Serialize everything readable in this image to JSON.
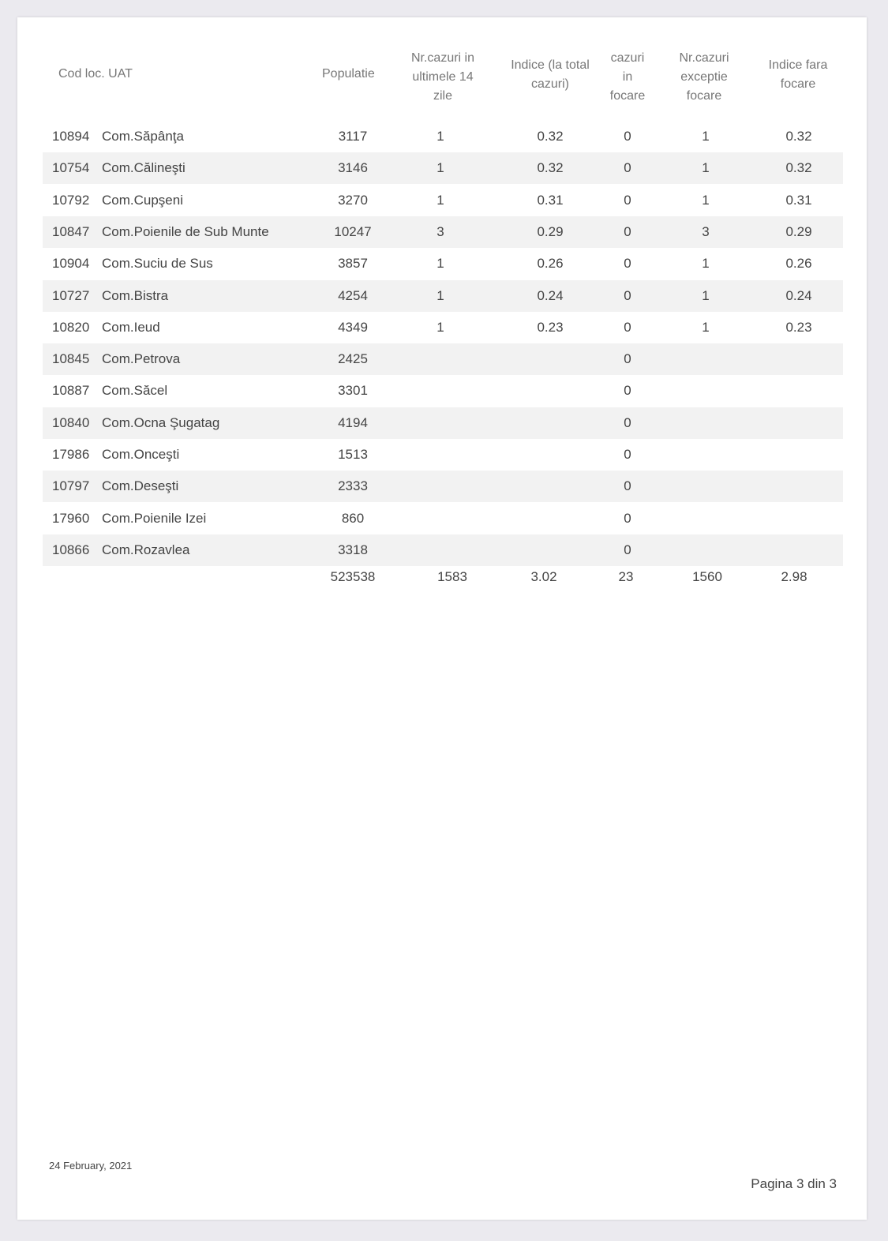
{
  "headers": {
    "cod_uat": "Cod loc.  UAT",
    "populatie": "Populatie",
    "nr_cazuri": [
      "Nr.cazuri in",
      "ultimele 14",
      "zile"
    ],
    "indice": [
      "Indice (la total",
      "cazuri)"
    ],
    "cazuri_focare": [
      "cazuri",
      "in",
      "focare"
    ],
    "nr_exceptie": [
      "Nr.cazuri",
      "exceptie",
      "focare"
    ],
    "indice_fara": [
      "Indice fara",
      "focare"
    ]
  },
  "rows": [
    {
      "cod": "10894",
      "uat": "Com.Săpânţa",
      "pop": "3117",
      "nr": "1",
      "ind": "0.32",
      "foc": "0",
      "exc": "1",
      "indf": "0.32"
    },
    {
      "cod": "10754",
      "uat": "Com.Călineşti",
      "pop": "3146",
      "nr": "1",
      "ind": "0.32",
      "foc": "0",
      "exc": "1",
      "indf": "0.32"
    },
    {
      "cod": "10792",
      "uat": "Com.Cupşeni",
      "pop": "3270",
      "nr": "1",
      "ind": "0.31",
      "foc": "0",
      "exc": "1",
      "indf": "0.31"
    },
    {
      "cod": "10847",
      "uat": "Com.Poienile de Sub Munte",
      "pop": "10247",
      "nr": "3",
      "ind": "0.29",
      "foc": "0",
      "exc": "3",
      "indf": "0.29"
    },
    {
      "cod": "10904",
      "uat": "Com.Suciu de Sus",
      "pop": "3857",
      "nr": "1",
      "ind": "0.26",
      "foc": "0",
      "exc": "1",
      "indf": "0.26"
    },
    {
      "cod": "10727",
      "uat": "Com.Bistra",
      "pop": "4254",
      "nr": "1",
      "ind": "0.24",
      "foc": "0",
      "exc": "1",
      "indf": "0.24"
    },
    {
      "cod": "10820",
      "uat": "Com.Ieud",
      "pop": "4349",
      "nr": "1",
      "ind": "0.23",
      "foc": "0",
      "exc": "1",
      "indf": "0.23"
    },
    {
      "cod": "10845",
      "uat": "Com.Petrova",
      "pop": "2425",
      "nr": "",
      "ind": "",
      "foc": "0",
      "exc": "",
      "indf": ""
    },
    {
      "cod": "10887",
      "uat": "Com.Săcel",
      "pop": "3301",
      "nr": "",
      "ind": "",
      "foc": "0",
      "exc": "",
      "indf": ""
    },
    {
      "cod": "10840",
      "uat": "Com.Ocna Şugatag",
      "pop": "4194",
      "nr": "",
      "ind": "",
      "foc": "0",
      "exc": "",
      "indf": ""
    },
    {
      "cod": "17986",
      "uat": "Com.Onceşti",
      "pop": "1513",
      "nr": "",
      "ind": "",
      "foc": "0",
      "exc": "",
      "indf": ""
    },
    {
      "cod": "10797",
      "uat": "Com.Deseşti",
      "pop": "2333",
      "nr": "",
      "ind": "",
      "foc": "0",
      "exc": "",
      "indf": ""
    },
    {
      "cod": "17960",
      "uat": "Com.Poienile Izei",
      "pop": "860",
      "nr": "",
      "ind": "",
      "foc": "0",
      "exc": "",
      "indf": ""
    },
    {
      "cod": "10866",
      "uat": "Com.Rozavlea",
      "pop": "3318",
      "nr": "",
      "ind": "",
      "foc": "0",
      "exc": "",
      "indf": ""
    }
  ],
  "totals": {
    "pop": "523538",
    "nr": "1583",
    "ind": "3.02",
    "foc": "23",
    "exc": "1560",
    "indf": "2.98"
  },
  "footer": {
    "date": "24 February, 2021",
    "page": "Pagina 3 din 3"
  }
}
